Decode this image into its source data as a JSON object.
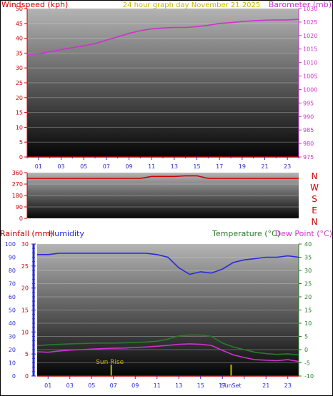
{
  "header": {
    "left_title": "Windspeed (kph)",
    "center_title": "24 hour graph day   November 21 2025",
    "right_title": "Barometer (mb)"
  },
  "hours": [
    "01",
    "03",
    "05",
    "07",
    "09",
    "11",
    "13",
    "15",
    "17",
    "19",
    "21",
    "23"
  ],
  "colors": {
    "windspeed": "#cc0000",
    "barometer": "#cc33cc",
    "direction": "#cc0000",
    "rainfall": "#cc0000",
    "humidity": "#2b2bd9",
    "temperature": "#2a7a2a",
    "dewpoint": "#cc33cc",
    "title": "#c8b400",
    "sun": "#c8b400"
  },
  "chart_data": [
    {
      "type": "line",
      "panel": "wind-barometer",
      "x": [
        0,
        1,
        2,
        3,
        4,
        5,
        6,
        7,
        8,
        9,
        10,
        11,
        12,
        13,
        14,
        15,
        16,
        17,
        18,
        19,
        20,
        21,
        22,
        23,
        24
      ],
      "left_axis": {
        "label": "Windspeed (kph)",
        "range": [
          0,
          50
        ],
        "ticks": [
          0,
          5,
          10,
          15,
          20,
          25,
          30,
          35,
          40,
          45,
          50
        ]
      },
      "right_axis": {
        "label": "Barometer (mb)",
        "range": [
          975,
          1030
        ],
        "ticks": [
          975,
          980,
          985,
          990,
          995,
          1000,
          1005,
          1010,
          1015,
          1020,
          1025,
          1030
        ]
      },
      "series": [
        {
          "name": "Windspeed",
          "axis": "left",
          "values": [
            0,
            0,
            0,
            0,
            0,
            0,
            0,
            0,
            0,
            0,
            0,
            0,
            0,
            0,
            0,
            0,
            0,
            0,
            0,
            0,
            0,
            0,
            0,
            0,
            0
          ]
        },
        {
          "name": "Barometer",
          "axis": "right",
          "values": [
            1013.0,
            1013.3,
            1014.0,
            1014.8,
            1015.5,
            1016.2,
            1017.0,
            1018.3,
            1019.5,
            1020.8,
            1021.8,
            1022.5,
            1022.8,
            1023.0,
            1023.0,
            1023.3,
            1023.8,
            1024.5,
            1024.8,
            1025.2,
            1025.5,
            1025.7,
            1025.8,
            1025.8,
            1026.0
          ]
        }
      ],
      "grid": true
    },
    {
      "type": "line",
      "panel": "wind-direction",
      "x": [
        0,
        1,
        2,
        3,
        4,
        5,
        6,
        7,
        8,
        9,
        10,
        11,
        12,
        13,
        14,
        15,
        16,
        17,
        18,
        19,
        20,
        21,
        22,
        23,
        24
      ],
      "left_axis": {
        "range": [
          0,
          360
        ],
        "ticks": [
          0,
          90,
          180,
          270,
          360
        ]
      },
      "right_axis": {
        "ticks": [
          "N",
          "W",
          "S",
          "E",
          "N"
        ]
      },
      "series": [
        {
          "name": "Wind direction",
          "values": [
            315,
            315,
            315,
            315,
            315,
            315,
            315,
            315,
            315,
            315,
            315,
            330,
            330,
            330,
            335,
            335,
            315,
            315,
            315,
            315,
            315,
            315,
            315,
            315,
            315
          ]
        }
      ],
      "grid": true
    },
    {
      "type": "line",
      "panel": "rain-humidity-temp",
      "x": [
        0,
        1,
        2,
        3,
        4,
        5,
        6,
        7,
        8,
        9,
        10,
        11,
        12,
        13,
        14,
        15,
        16,
        17,
        18,
        19,
        20,
        21,
        22,
        23,
        24
      ],
      "axis_labels": {
        "rainfall": "Rainfall (mm)",
        "humidity": "Humidity",
        "temperature": "Temperature (°C)",
        "dewpoint": "Dew Point (°C)"
      },
      "humidity_axis": {
        "range": [
          0,
          100
        ],
        "ticks": [
          0,
          10,
          20,
          30,
          40,
          50,
          60,
          70,
          80,
          90,
          100
        ]
      },
      "rain_axis": {
        "range": [
          0,
          30
        ],
        "ticks": [
          0,
          5,
          10,
          15,
          20,
          25,
          30
        ]
      },
      "temp_axis": {
        "range": [
          -10,
          40
        ],
        "ticks": [
          -10,
          -5,
          0,
          5,
          10,
          15,
          20,
          25,
          30,
          35,
          40
        ]
      },
      "series": [
        {
          "name": "Humidity",
          "axis": "humidity",
          "values": [
            92,
            92,
            93,
            93,
            93,
            93,
            93,
            93,
            93,
            93,
            93,
            92,
            90,
            82,
            77,
            79,
            78,
            81,
            86,
            88,
            89,
            90,
            90,
            91,
            90
          ]
        },
        {
          "name": "Temperature",
          "axis": "temp",
          "values": [
            1.5,
            1.8,
            2.0,
            2.2,
            2.3,
            2.4,
            2.5,
            2.5,
            2.6,
            2.7,
            2.9,
            3.2,
            4.0,
            5.2,
            5.5,
            5.5,
            5.0,
            2.5,
            1.0,
            0.0,
            -1.0,
            -1.5,
            -1.8,
            -1.6,
            -2.0
          ]
        },
        {
          "name": "Dew Point",
          "axis": "temp",
          "values": [
            -0.8,
            -1.0,
            -0.5,
            -0.2,
            0,
            0.2,
            0.4,
            0.5,
            0.6,
            0.8,
            1.0,
            1.3,
            1.6,
            2.0,
            2.2,
            2.0,
            1.6,
            -0.3,
            -2.0,
            -3.0,
            -3.8,
            -4.0,
            -4.2,
            -3.8,
            -4.5
          ]
        },
        {
          "name": "Rainfall",
          "axis": "rain",
          "values": [
            0,
            0,
            0,
            0,
            0,
            0,
            0,
            0,
            0,
            0,
            0,
            0,
            0,
            0,
            0,
            0,
            0,
            0,
            0,
            0,
            0,
            0,
            0,
            0,
            0
          ]
        }
      ],
      "annotations": [
        {
          "text": "Sun Rise",
          "hour": 6.8
        },
        {
          "text": "SunSet",
          "hour": 17.8
        }
      ],
      "grid": true
    }
  ]
}
